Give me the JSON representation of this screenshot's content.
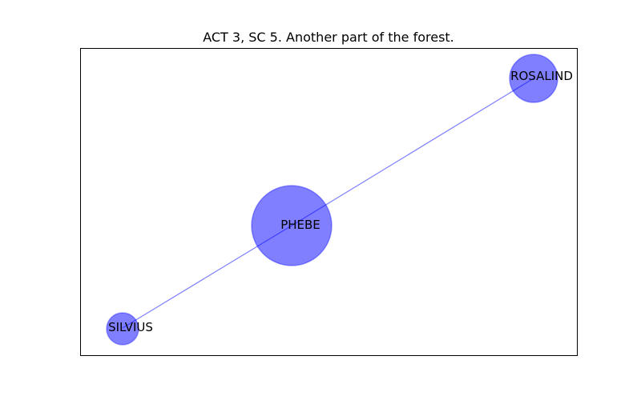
{
  "title": "ACT 3, SC 5. Another part of the forest.",
  "colors": {
    "node_fill": "#0000ff",
    "edge": "#0000ff",
    "frame": "#000000",
    "background": "#ffffff"
  },
  "nodes": [
    {
      "id": "PHEBE",
      "label": "PHEBE"
    },
    {
      "id": "ROSALIND",
      "label": "ROSALIND"
    },
    {
      "id": "SILVIUS",
      "label": "SILVIUS"
    }
  ],
  "edges": [
    {
      "source": "ROSALIND",
      "target": "PHEBE"
    },
    {
      "source": "PHEBE",
      "target": "SILVIUS"
    }
  ]
}
